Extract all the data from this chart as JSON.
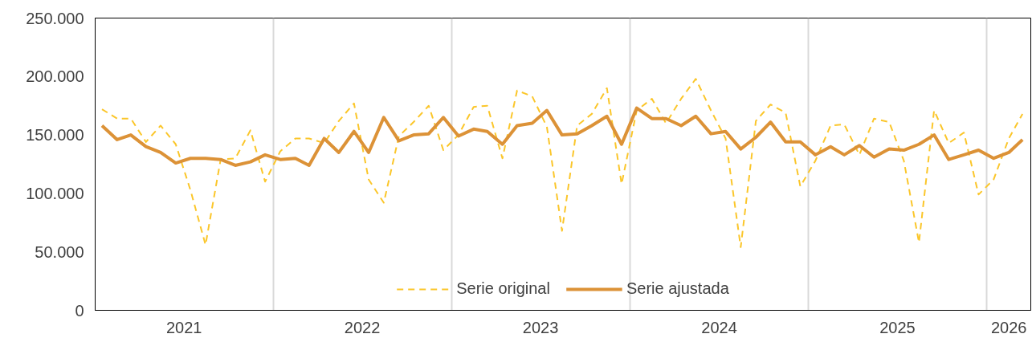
{
  "chart_data": {
    "type": "line",
    "x": [
      "2021-01-15",
      "2021-02-15",
      "2021-03-15",
      "2021-04-15",
      "2021-05-15",
      "2021-06-15",
      "2021-07-15",
      "2021-08-15",
      "2021-09-15",
      "2021-10-15",
      "2021-11-15",
      "2021-12-15",
      "2022-01-15",
      "2022-02-15",
      "2022-03-15",
      "2022-04-15",
      "2022-05-15",
      "2022-06-15",
      "2022-07-15",
      "2022-08-15",
      "2022-09-15",
      "2022-10-15",
      "2022-11-15",
      "2022-12-15",
      "2023-01-15",
      "2023-02-15",
      "2023-03-15",
      "2023-04-15",
      "2023-05-15",
      "2023-06-15",
      "2023-07-15",
      "2023-08-15",
      "2023-09-15",
      "2023-10-15",
      "2023-11-15",
      "2023-12-15",
      "2024-01-15",
      "2024-02-15",
      "2024-03-15",
      "2024-04-15",
      "2024-05-15",
      "2024-06-15",
      "2024-07-15",
      "2024-08-15",
      "2024-09-15",
      "2024-10-15",
      "2024-11-15",
      "2024-12-15",
      "2025-01-15",
      "2025-02-15",
      "2025-03-15",
      "2025-04-15",
      "2025-05-15",
      "2025-06-15",
      "2025-07-15",
      "2025-08-15",
      "2025-09-15",
      "2025-10-15",
      "2025-11-15",
      "2025-12-15",
      "2026-01-15",
      "2026-02-15",
      "2026-03-15"
    ],
    "series": [
      {
        "name": "Serie original",
        "color": "#fbc62a",
        "line_style": "dashed",
        "values": [
          172000,
          164000,
          164000,
          144000,
          158000,
          142000,
          103000,
          56000,
          129000,
          130000,
          154000,
          110000,
          136000,
          147000,
          147000,
          143000,
          162000,
          177000,
          112000,
          92000,
          149000,
          161000,
          175000,
          137000,
          150000,
          174000,
          175000,
          130000,
          188000,
          183000,
          157000,
          68000,
          158000,
          168000,
          190000,
          108000,
          171000,
          181000,
          160000,
          181000,
          198000,
          171000,
          147000,
          54000,
          162000,
          176000,
          169000,
          106000,
          128000,
          158000,
          159000,
          133000,
          164000,
          161000,
          128000,
          58000,
          171000,
          143000,
          152000,
          99000,
          112000,
          147000,
          168000
        ]
      },
      {
        "name": "Serie ajustada",
        "color": "#dc9237",
        "line_style": "solid",
        "values": [
          158000,
          146000,
          150000,
          140000,
          135000,
          126000,
          130000,
          130000,
          129000,
          124000,
          127000,
          133000,
          129000,
          130000,
          124000,
          147000,
          135000,
          153000,
          135000,
          165000,
          145000,
          150000,
          151000,
          165000,
          149000,
          155000,
          153000,
          142000,
          158000,
          160000,
          171000,
          150000,
          151000,
          158000,
          166000,
          142000,
          173000,
          164000,
          164000,
          158000,
          166000,
          151000,
          153000,
          138000,
          148000,
          161000,
          144000,
          144000,
          133000,
          140000,
          133000,
          141000,
          131000,
          138000,
          137000,
          142000,
          150000,
          129000,
          133000,
          137000,
          130000,
          135000,
          146000
        ]
      }
    ],
    "xlim": [
      "2021-01-01",
      "2026-04-01"
    ],
    "xticks": [
      {
        "value": "2021-07-02",
        "label": "2021"
      },
      {
        "value": "2022-01-01",
        "label": null
      },
      {
        "value": "2022-07-02",
        "label": "2022"
      },
      {
        "value": "2023-01-01",
        "label": null
      },
      {
        "value": "2023-07-02",
        "label": "2023"
      },
      {
        "value": "2024-01-01",
        "label": null
      },
      {
        "value": "2024-07-02",
        "label": "2024"
      },
      {
        "value": "2025-01-01",
        "label": null
      },
      {
        "value": "2025-07-02",
        "label": "2025"
      },
      {
        "value": "2026-01-01",
        "label": null
      },
      {
        "value": "2026-02-15",
        "label": "2026"
      }
    ],
    "ylim": [
      0,
      250000
    ],
    "yticks": [
      {
        "value": 0,
        "label": "0"
      },
      {
        "value": 50000,
        "label": "50.000"
      },
      {
        "value": 100000,
        "label": "100.000"
      },
      {
        "value": 150000,
        "label": "150.000"
      },
      {
        "value": 200000,
        "label": "200.000"
      },
      {
        "value": 250000,
        "label": "250.000"
      }
    ],
    "grid": "x",
    "legend": "bottom"
  }
}
